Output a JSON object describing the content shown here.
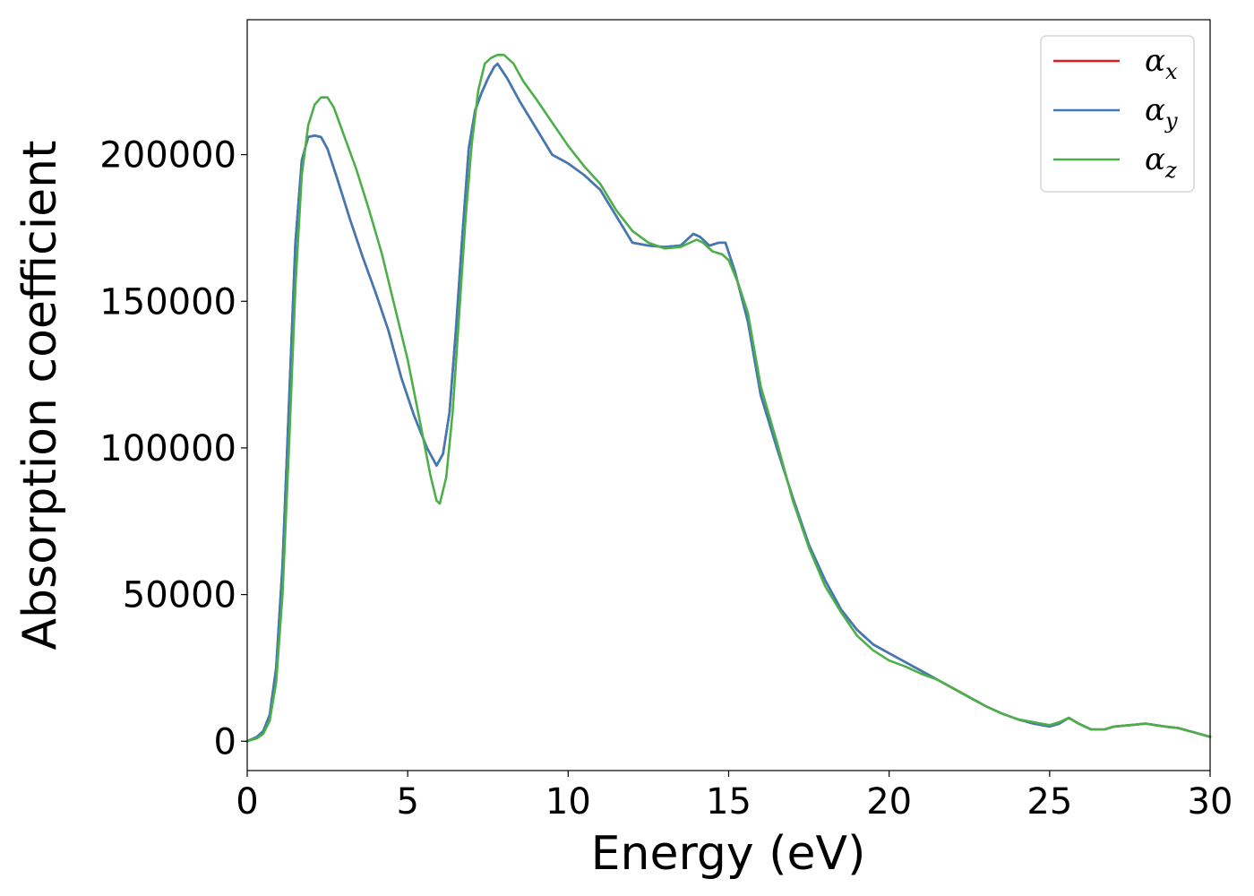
{
  "chart_data": {
    "type": "line",
    "xlabel": "Energy (eV)",
    "ylabel": "Absorption coefficient",
    "xlim": [
      0,
      30
    ],
    "ylim": [
      -10000,
      246000
    ],
    "xticks": [
      0,
      5,
      10,
      15,
      20,
      25,
      30
    ],
    "xtick_labels": [
      "0",
      "5",
      "10",
      "15",
      "20",
      "25",
      "30"
    ],
    "yticks": [
      0,
      50000,
      100000,
      150000,
      200000
    ],
    "ytick_labels": [
      "0",
      "50000",
      "100000",
      "150000",
      "200000"
    ],
    "grid": false,
    "legend_position": "top-right",
    "series": [
      {
        "name": "α",
        "subscript": "x",
        "color": "#e41a1c",
        "x": [
          0,
          0.3,
          0.5,
          0.7,
          0.9,
          1.1,
          1.3,
          1.5,
          1.7,
          1.9,
          2.1,
          2.3,
          2.5,
          2.8,
          3.2,
          3.6,
          4.0,
          4.4,
          4.8,
          5.2,
          5.6,
          5.9,
          6.1,
          6.3,
          6.5,
          6.7,
          6.9,
          7.1,
          7.3,
          7.5,
          7.7,
          7.8,
          8.1,
          8.5,
          9.0,
          9.5,
          10.0,
          10.5,
          11.0,
          11.5,
          12.0,
          12.5,
          13.0,
          13.5,
          13.9,
          14.1,
          14.4,
          14.7,
          14.9,
          15.2,
          15.6,
          16.0,
          16.5,
          17.0,
          17.5,
          18.0,
          18.5,
          19.0,
          19.5,
          20.0,
          20.5,
          21.0,
          21.5,
          22.0,
          22.5,
          23.0,
          23.5,
          24.0,
          24.5,
          25.0,
          25.3,
          25.6,
          25.9,
          26.3,
          26.7,
          27.0,
          27.5,
          28.0,
          28.3,
          28.6,
          29.0,
          29.5,
          30.0
        ],
        "y": [
          0,
          1500,
          3500,
          9000,
          25000,
          60000,
          115000,
          170000,
          198000,
          206000,
          206500,
          206000,
          202000,
          192000,
          178000,
          165000,
          153000,
          140000,
          124000,
          111000,
          100000,
          94000,
          98000,
          112000,
          140000,
          172000,
          202000,
          215000,
          221000,
          226000,
          230000,
          231000,
          226000,
          218000,
          209000,
          200000,
          197000,
          193000,
          188000,
          179000,
          170000,
          169000,
          168500,
          169000,
          173000,
          172000,
          169000,
          170000,
          170000,
          160000,
          143000,
          118000,
          100000,
          83000,
          67000,
          55000,
          45000,
          38000,
          33000,
          30000,
          27000,
          24000,
          21000,
          18000,
          15000,
          12000,
          9500,
          7500,
          6000,
          5000,
          6000,
          8000,
          6000,
          4000,
          4000,
          5000,
          5500,
          6000,
          5500,
          5000,
          4500,
          3000,
          1500
        ]
      },
      {
        "name": "α",
        "subscript": "y",
        "color": "#3e7bb6",
        "x": [
          0,
          0.3,
          0.5,
          0.7,
          0.9,
          1.1,
          1.3,
          1.5,
          1.7,
          1.9,
          2.1,
          2.3,
          2.5,
          2.8,
          3.2,
          3.6,
          4.0,
          4.4,
          4.8,
          5.2,
          5.6,
          5.9,
          6.1,
          6.3,
          6.5,
          6.7,
          6.9,
          7.1,
          7.3,
          7.5,
          7.7,
          7.8,
          8.1,
          8.5,
          9.0,
          9.5,
          10.0,
          10.5,
          11.0,
          11.5,
          12.0,
          12.5,
          13.0,
          13.5,
          13.9,
          14.1,
          14.4,
          14.7,
          14.9,
          15.2,
          15.6,
          16.0,
          16.5,
          17.0,
          17.5,
          18.0,
          18.5,
          19.0,
          19.5,
          20.0,
          20.5,
          21.0,
          21.5,
          22.0,
          22.5,
          23.0,
          23.5,
          24.0,
          24.5,
          25.0,
          25.3,
          25.6,
          25.9,
          26.3,
          26.7,
          27.0,
          27.5,
          28.0,
          28.3,
          28.6,
          29.0,
          29.5,
          30.0
        ],
        "y": [
          0,
          1500,
          3500,
          9000,
          25000,
          60000,
          115000,
          170000,
          198000,
          206000,
          206500,
          206000,
          202000,
          192000,
          178000,
          165000,
          153000,
          140000,
          124000,
          111000,
          100000,
          94000,
          98000,
          112000,
          140000,
          172000,
          202000,
          215000,
          221000,
          226000,
          230000,
          231000,
          226000,
          218000,
          209000,
          200000,
          197000,
          193000,
          188000,
          179000,
          170000,
          169000,
          168500,
          169000,
          173000,
          172000,
          169000,
          170000,
          170000,
          160000,
          143000,
          118000,
          100000,
          83000,
          67000,
          55000,
          45000,
          38000,
          33000,
          30000,
          27000,
          24000,
          21000,
          18000,
          15000,
          12000,
          9500,
          7500,
          6000,
          5000,
          6000,
          8000,
          6000,
          4000,
          4000,
          5000,
          5500,
          6000,
          5500,
          5000,
          4500,
          3000,
          1500
        ]
      },
      {
        "name": "α",
        "subscript": "z",
        "color": "#4daf4a",
        "x": [
          0,
          0.3,
          0.5,
          0.7,
          0.9,
          1.1,
          1.3,
          1.5,
          1.7,
          1.9,
          2.1,
          2.3,
          2.5,
          2.7,
          3.0,
          3.4,
          3.8,
          4.2,
          4.6,
          5.0,
          5.4,
          5.7,
          5.9,
          6.0,
          6.2,
          6.4,
          6.6,
          6.8,
          7.0,
          7.2,
          7.4,
          7.6,
          7.8,
          8.0,
          8.3,
          8.6,
          9.0,
          9.5,
          10.0,
          10.5,
          11.0,
          11.5,
          12.0,
          12.5,
          13.0,
          13.5,
          14.0,
          14.2,
          14.5,
          14.8,
          15.0,
          15.3,
          15.6,
          16.0,
          16.5,
          17.0,
          17.5,
          18.0,
          18.5,
          19.0,
          19.5,
          20.0,
          20.5,
          21.0,
          21.5,
          22.0,
          22.5,
          23.0,
          23.5,
          24.0,
          24.5,
          25.0,
          25.3,
          25.6,
          25.9,
          26.3,
          26.7,
          27.0,
          27.5,
          28.0,
          28.3,
          28.6,
          29.0,
          29.5,
          30.0
        ],
        "y": [
          0,
          1000,
          2500,
          7000,
          20000,
          50000,
          100000,
          155000,
          193000,
          210000,
          217000,
          219500,
          219500,
          216000,
          207000,
          195000,
          181000,
          166000,
          148000,
          130000,
          108000,
          91000,
          82000,
          81000,
          90000,
          112000,
          145000,
          178000,
          204000,
          222000,
          231000,
          233000,
          234000,
          234000,
          231000,
          225000,
          219000,
          211000,
          203000,
          196000,
          190000,
          181000,
          174000,
          170000,
          168000,
          168500,
          171000,
          170000,
          167000,
          166000,
          164000,
          156000,
          146000,
          121000,
          102000,
          82000,
          66000,
          53000,
          44000,
          36000,
          31000,
          27500,
          25500,
          23000,
          21000,
          18000,
          15000,
          12000,
          9500,
          7500,
          6500,
          5500,
          6500,
          8000,
          6000,
          4000,
          4000,
          5000,
          5500,
          6000,
          5500,
          5000,
          4500,
          3000,
          1500
        ]
      }
    ]
  }
}
